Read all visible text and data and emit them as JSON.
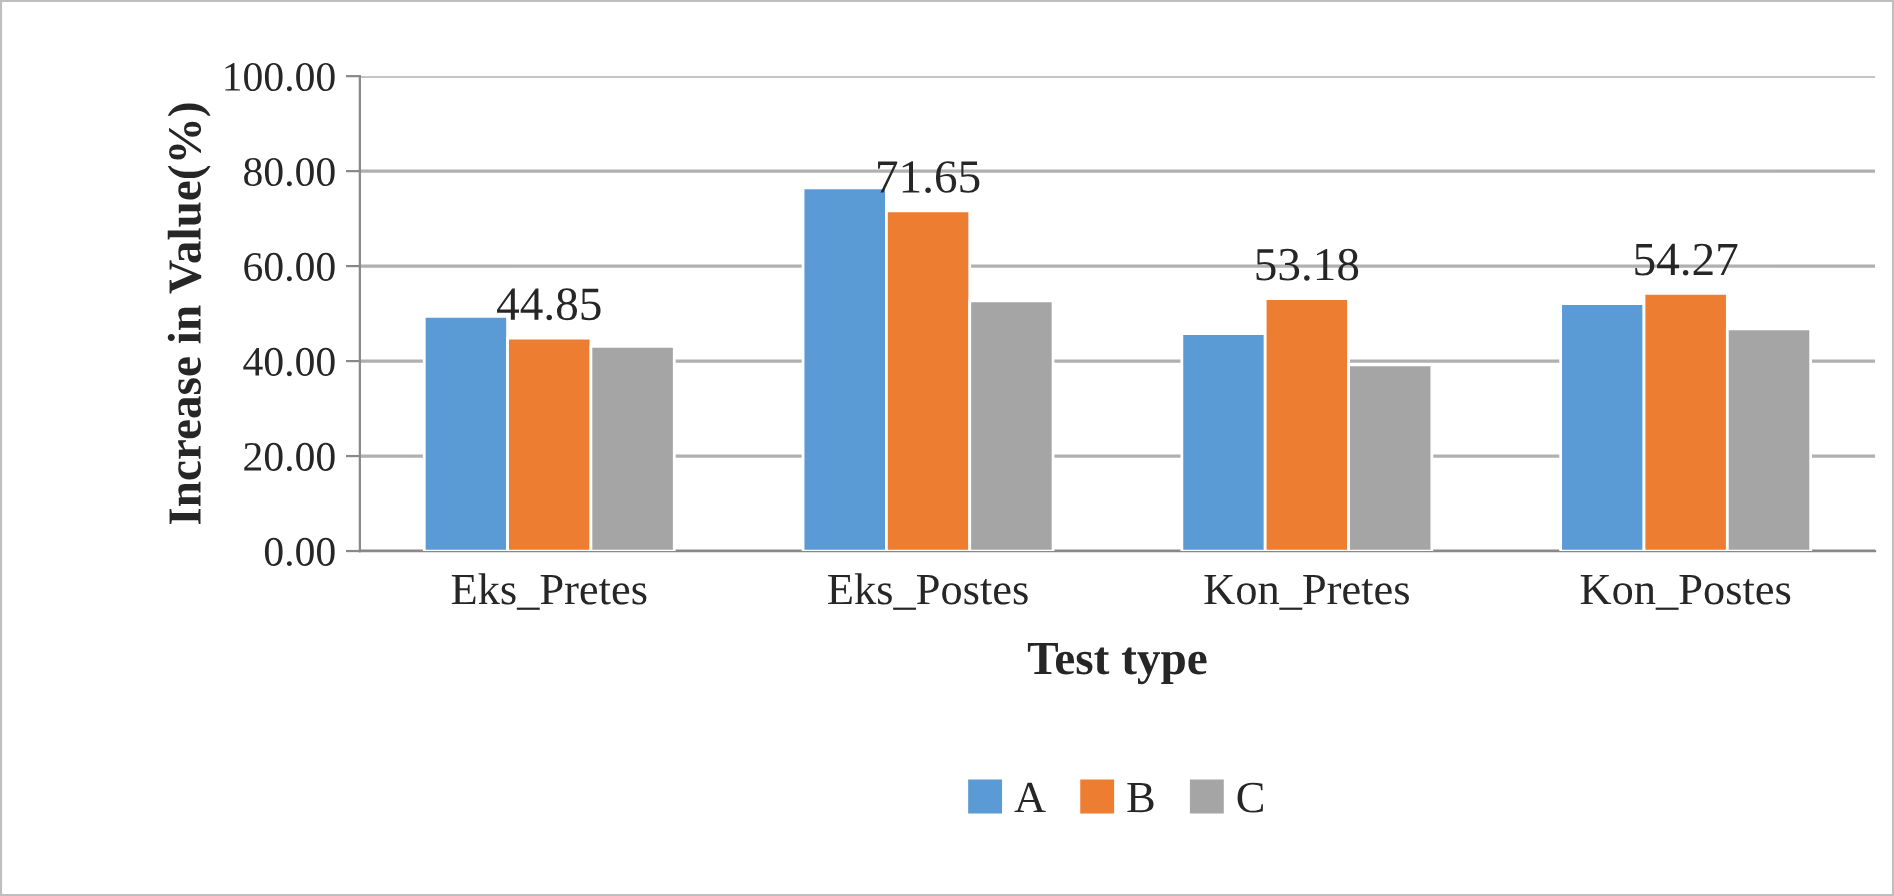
{
  "chart_data": {
    "type": "bar",
    "xlabel": "Test type",
    "ylabel": "Increase in Value(%)",
    "categories": [
      "Eks_Pretes",
      "Eks_Postes",
      "Kon_Pretes",
      "Kon_Postes"
    ],
    "series": [
      {
        "name": "A",
        "color": "#5b9bd5",
        "values": [
          49.4,
          76.5,
          45.8,
          52.1
        ]
      },
      {
        "name": "B",
        "color": "#ed7d31",
        "values": [
          44.85,
          71.65,
          53.18,
          54.27
        ],
        "value_labels": [
          "44.85",
          "71.65",
          "53.18",
          "54.27"
        ]
      },
      {
        "name": "C",
        "color": "#a5a5a5",
        "values": [
          43.1,
          52.7,
          39.2,
          46.8
        ]
      }
    ],
    "ylim": [
      0,
      100
    ],
    "yticks": [
      {
        "value": 0,
        "label": "0.00"
      },
      {
        "value": 20,
        "label": "20.00"
      },
      {
        "value": 40,
        "label": "40.00"
      },
      {
        "value": 60,
        "label": "60.00"
      },
      {
        "value": 80,
        "label": "80.00"
      },
      {
        "value": 100,
        "label": "100.00"
      }
    ],
    "grid": "y",
    "legend": "bottom"
  }
}
